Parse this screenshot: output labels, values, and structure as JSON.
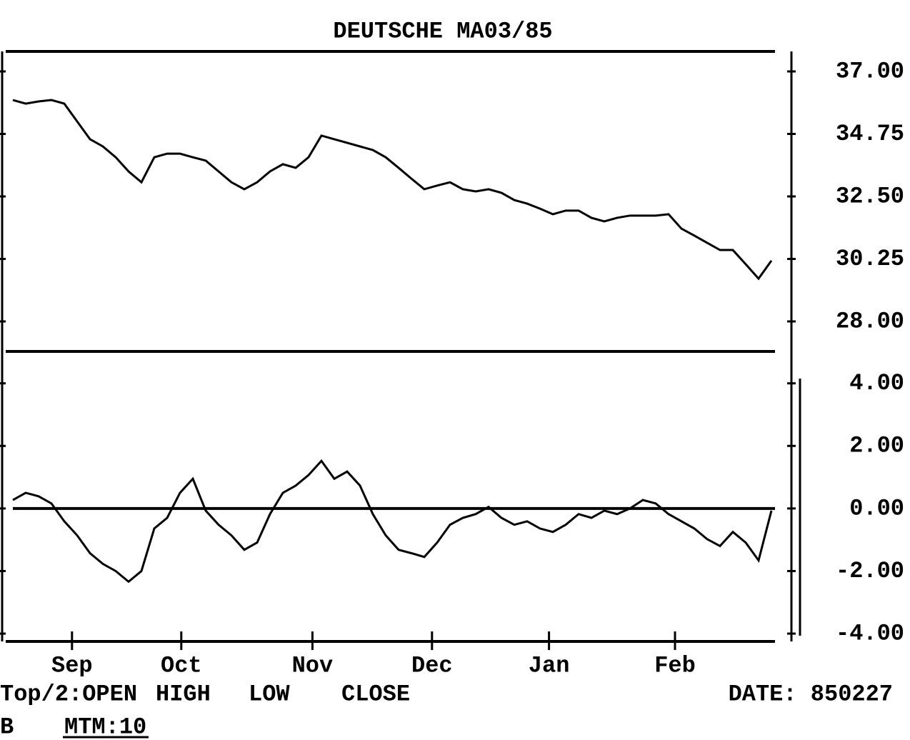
{
  "chart_data": [
    {
      "type": "line",
      "title": "DEUTSCHE MA03/85",
      "x": [
        0,
        1,
        2,
        3,
        4,
        5,
        6,
        7,
        8,
        9,
        10,
        11,
        12,
        13,
        14,
        15,
        16,
        17,
        18,
        19,
        20,
        21,
        22,
        23,
        24,
        25,
        26,
        27,
        28,
        29,
        30,
        31,
        32,
        33,
        34,
        35,
        36,
        37,
        38,
        39,
        40,
        41,
        42,
        43,
        44,
        45,
        46,
        47,
        48,
        49,
        50,
        51,
        52,
        53,
        54,
        55,
        56,
        57,
        58,
        59
      ],
      "series": [
        {
          "name": "CLOSE",
          "color": "#000000",
          "values": [
            35.97,
            35.84,
            35.92,
            35.97,
            35.84,
            35.2,
            34.56,
            34.3,
            33.91,
            33.4,
            33.01,
            33.91,
            34.04,
            34.04,
            33.91,
            33.79,
            33.4,
            33.01,
            32.76,
            33.01,
            33.4,
            33.66,
            33.53,
            33.91,
            34.69,
            34.56,
            34.43,
            34.3,
            34.17,
            33.91,
            33.53,
            33.14,
            32.76,
            32.89,
            33.01,
            32.76,
            32.68,
            32.76,
            32.63,
            32.37,
            32.24,
            32.06,
            31.86,
            31.99,
            31.99,
            31.73,
            31.6,
            31.73,
            31.81,
            31.81,
            31.81,
            31.86,
            31.34,
            31.09,
            30.83,
            30.57,
            30.57,
            30.06,
            29.54,
            30.19
          ]
        }
      ],
      "xlim": [
        0,
        59
      ],
      "ylim": [
        26.92,
        37.72
      ],
      "yticks": [
        {
          "value": 37,
          "label": "37.00"
        },
        {
          "value": 34.75,
          "label": "34.75"
        },
        {
          "value": 32.5,
          "label": "32.50"
        },
        {
          "value": 30.25,
          "label": "30.25"
        },
        {
          "value": 28,
          "label": "28.00"
        }
      ]
    },
    {
      "type": "line",
      "x": [
        0,
        1,
        2,
        3,
        4,
        5,
        6,
        7,
        8,
        9,
        10,
        11,
        12,
        13,
        14,
        15,
        16,
        17,
        18,
        19,
        20,
        21,
        22,
        23,
        24,
        25,
        26,
        27,
        28,
        29,
        30,
        31,
        32,
        33,
        34,
        35,
        36,
        37,
        38,
        39,
        40,
        41,
        42,
        43,
        44,
        45,
        46,
        47,
        48,
        49,
        50,
        51,
        52,
        53,
        54,
        55,
        56,
        57,
        58,
        59
      ],
      "series": [
        {
          "name": "MTM:10",
          "color": "#000000",
          "values": [
            0.27,
            0.5,
            0.39,
            0.16,
            -0.41,
            -0.86,
            -1.43,
            -1.77,
            -2,
            -2.34,
            -2,
            -0.64,
            -0.3,
            0.5,
            0.95,
            -0.07,
            -0.52,
            -0.86,
            -1.32,
            -1.09,
            -0.18,
            0.5,
            0.73,
            1.07,
            1.52,
            0.95,
            1.18,
            0.73,
            -0.18,
            -0.86,
            -1.32,
            -1.43,
            -1.55,
            -1.09,
            -0.52,
            -0.3,
            -0.18,
            0.05,
            -0.3,
            -0.52,
            -0.41,
            -0.64,
            -0.75,
            -0.52,
            -0.18,
            -0.3,
            -0.07,
            -0.18,
            0,
            0.27,
            0.16,
            -0.18,
            -0.41,
            -0.64,
            -0.98,
            -1.2,
            -0.75,
            -1.09,
            -1.66,
            -0.07
          ]
        }
      ],
      "xlim": [
        0,
        59
      ],
      "ylim": [
        -4.25,
        5.02
      ],
      "yticks": [
        {
          "value": 4,
          "label": "4.00"
        },
        {
          "value": 2,
          "label": "2.00"
        },
        {
          "value": 0,
          "label": "0.00"
        },
        {
          "value": -2,
          "label": "-2.00"
        },
        {
          "value": -4,
          "label": "-4.00"
        }
      ],
      "xticks": [
        {
          "value": 4.6,
          "label": "Sep"
        },
        {
          "value": 13.1,
          "label": "Oct"
        },
        {
          "value": 23.3,
          "label": "Nov"
        },
        {
          "value": 32.6,
          "label": "Dec"
        },
        {
          "value": 41.7,
          "label": "Jan"
        },
        {
          "value": 51.5,
          "label": "Feb"
        }
      ]
    }
  ],
  "footer": {
    "line1": [
      "Top/2:OPEN",
      "HIGH",
      "LOW",
      "CLOSE"
    ],
    "date": "DATE: 850227",
    "line2": [
      "B"
    ]
  }
}
